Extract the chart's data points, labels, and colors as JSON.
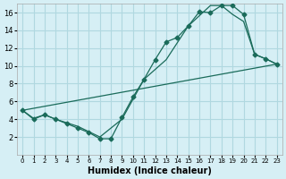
{
  "xlabel": "Humidex (Indice chaleur)",
  "ylabel": "",
  "bg_color": "#d6eff5",
  "grid_color": "#b0d8e0",
  "line_color": "#1a6b5a",
  "xlim": [
    -0.5,
    23.5
  ],
  "ylim": [
    0,
    17
  ],
  "xticks": [
    0,
    1,
    2,
    3,
    4,
    5,
    6,
    7,
    8,
    9,
    10,
    11,
    12,
    13,
    14,
    15,
    16,
    17,
    18,
    19,
    20,
    21,
    22,
    23
  ],
  "yticks": [
    2,
    4,
    6,
    8,
    10,
    12,
    14,
    16
  ],
  "line1_x": [
    0,
    1,
    2,
    3,
    4,
    5,
    6,
    7,
    8,
    9,
    10,
    11,
    12,
    13,
    14,
    15,
    16,
    17,
    18,
    19,
    20,
    21,
    22,
    23
  ],
  "line1_y": [
    5.0,
    4.0,
    4.5,
    4.0,
    3.5,
    3.0,
    2.5,
    1.8,
    1.8,
    4.2,
    6.5,
    8.5,
    10.7,
    12.7,
    13.2,
    14.5,
    16.1,
    16.0,
    16.8,
    16.8,
    15.8,
    11.3,
    10.8,
    10.2
  ],
  "line2_x": [
    0,
    1,
    2,
    3,
    5,
    7,
    9,
    11,
    13,
    15,
    17,
    18,
    19,
    20,
    21,
    22,
    23
  ],
  "line2_y": [
    5.0,
    4.1,
    4.5,
    4.0,
    3.2,
    2.0,
    4.0,
    8.5,
    10.7,
    14.5,
    16.8,
    16.8,
    15.8,
    15.0,
    11.3,
    10.8,
    10.2
  ],
  "line3_x": [
    0,
    23
  ],
  "line3_y": [
    5.0,
    10.2
  ]
}
